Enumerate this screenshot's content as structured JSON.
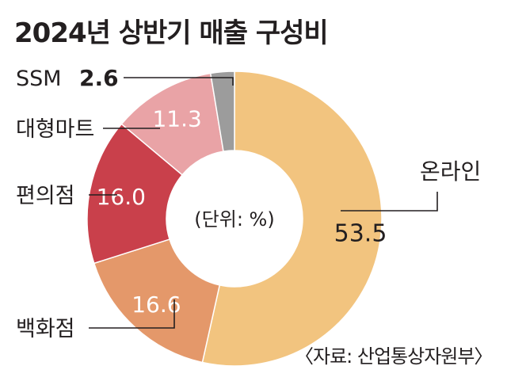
{
  "chart_data": {
    "type": "pie",
    "title": "2024년 상반기 매출 구성비",
    "unit_note": "(단위: %)",
    "source": "〈자료: 산업통상자원부〉",
    "categories": [
      "온라인",
      "백화점",
      "편의점",
      "대형마트",
      "SSM"
    ],
    "values": [
      53.5,
      16.6,
      16.0,
      11.3,
      2.6
    ],
    "value_labels": [
      "53.5",
      "16.6",
      "16.0",
      "11.3",
      "2.6"
    ],
    "colors": [
      "#f2c47f",
      "#e4986a",
      "#c9404b",
      "#e9a3a6",
      "#9c9c9c"
    ]
  }
}
